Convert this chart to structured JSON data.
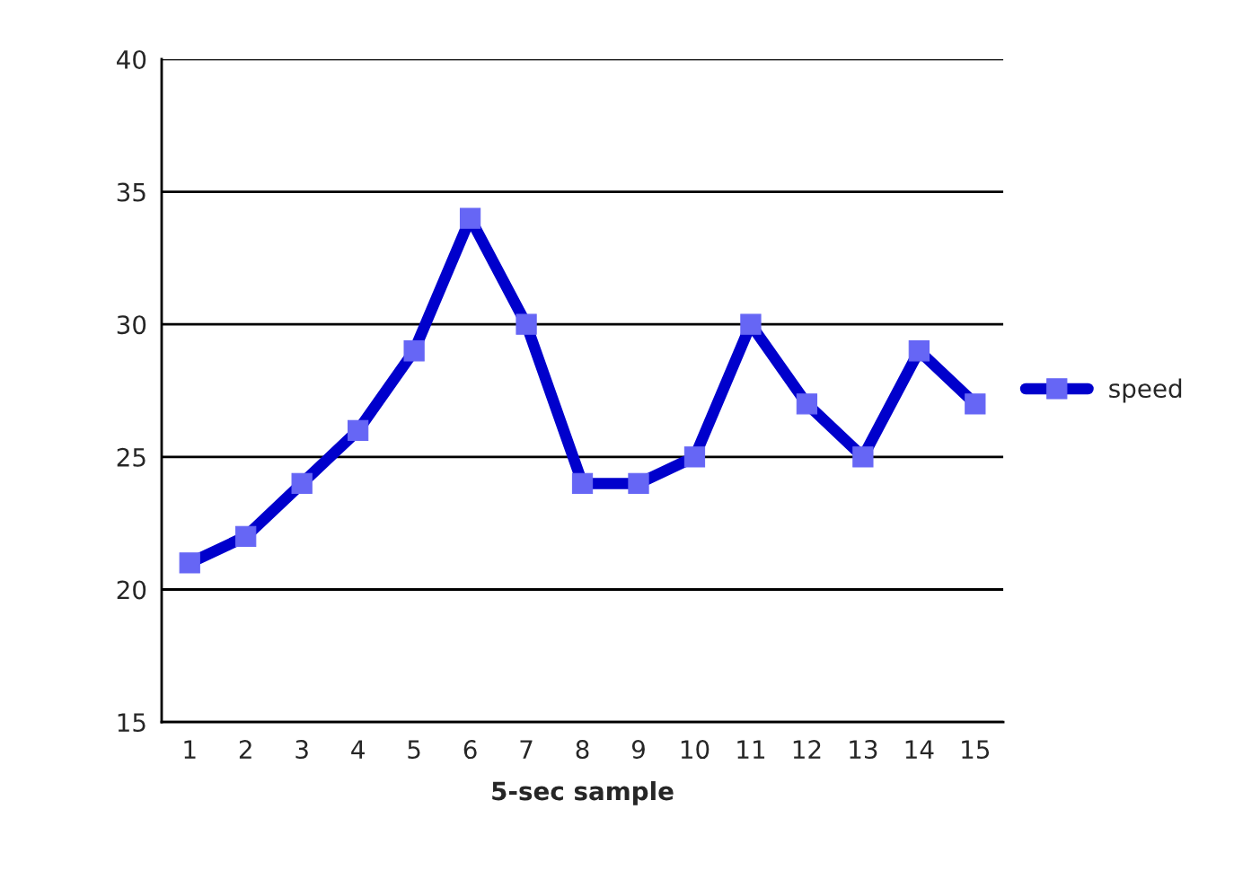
{
  "chart_data": {
    "type": "line",
    "xlabel": "5-sec sample",
    "categories": [
      "1",
      "2",
      "3",
      "4",
      "5",
      "6",
      "7",
      "8",
      "9",
      "10",
      "11",
      "12",
      "13",
      "14",
      "15"
    ],
    "series": [
      {
        "name": "speed",
        "color": "#0000cc",
        "values": [
          21,
          22,
          24,
          26,
          29,
          34,
          30,
          24,
          24,
          25,
          30,
          27,
          25,
          29,
          27
        ]
      }
    ],
    "ylim": [
      15,
      40
    ],
    "yticks": [
      15,
      20,
      25,
      30,
      35,
      40
    ],
    "grid": "y",
    "legend": "right",
    "marker": "square",
    "line_style": "solid"
  }
}
